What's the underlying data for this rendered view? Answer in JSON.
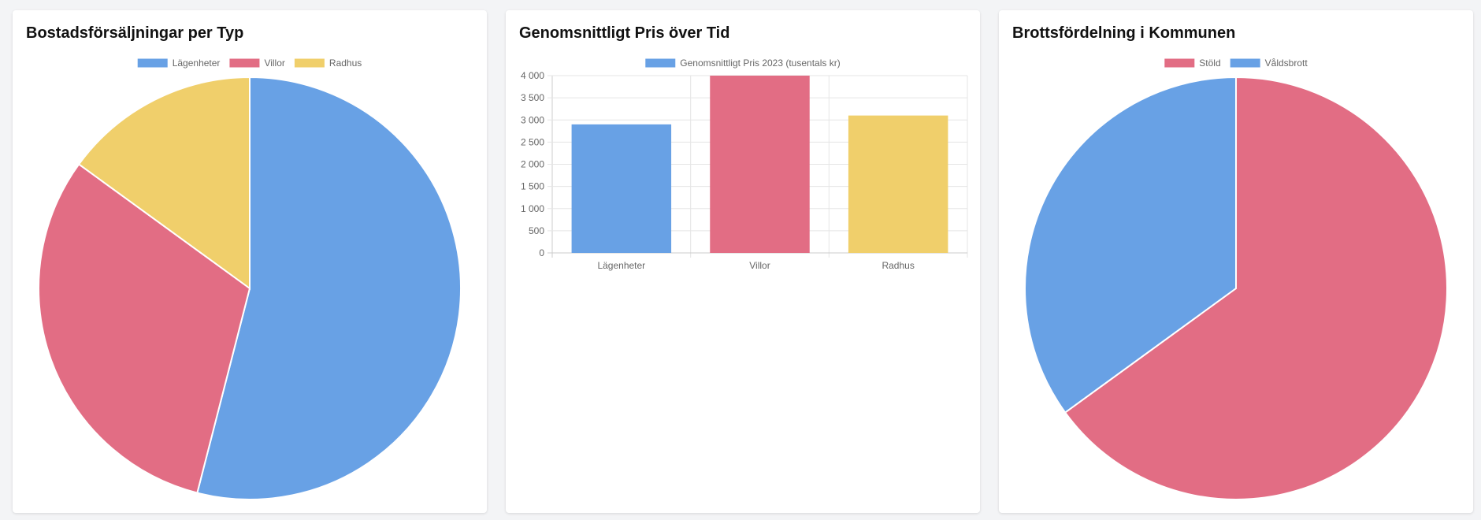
{
  "colors": {
    "blue": "#68a1e5",
    "red": "#e26d84",
    "yellow": "#f0cf6b"
  },
  "chart_data": [
    {
      "type": "pie",
      "title": "Bostadsförsäljningar per Typ",
      "legend_position": "top",
      "categories": [
        "Lägenheter",
        "Villor",
        "Radhus"
      ],
      "values": [
        54,
        31,
        15
      ],
      "colors": [
        "#68a1e5",
        "#e26d84",
        "#f0cf6b"
      ]
    },
    {
      "type": "bar",
      "title": "Genomsnittligt Pris över Tid",
      "legend_position": "top",
      "categories": [
        "Lägenheter",
        "Villor",
        "Radhus"
      ],
      "series": [
        {
          "name": "Genomsnittligt Pris 2023 (tusentals kr)",
          "values": [
            2900,
            4000,
            3100
          ]
        }
      ],
      "colors": [
        "#68a1e5",
        "#e26d84",
        "#f0cf6b"
      ],
      "ylim": [
        0,
        4000
      ],
      "yticks": [
        "0",
        "500",
        "1 000",
        "1 500",
        "2 000",
        "2 500",
        "3 000",
        "3 500",
        "4 000"
      ],
      "grid": true
    },
    {
      "type": "pie",
      "title": "Brottsfördelning i Kommunen",
      "legend_position": "top",
      "categories": [
        "Stöld",
        "Våldsbrott"
      ],
      "values": [
        65,
        35
      ],
      "colors": [
        "#e26d84",
        "#68a1e5"
      ]
    }
  ]
}
